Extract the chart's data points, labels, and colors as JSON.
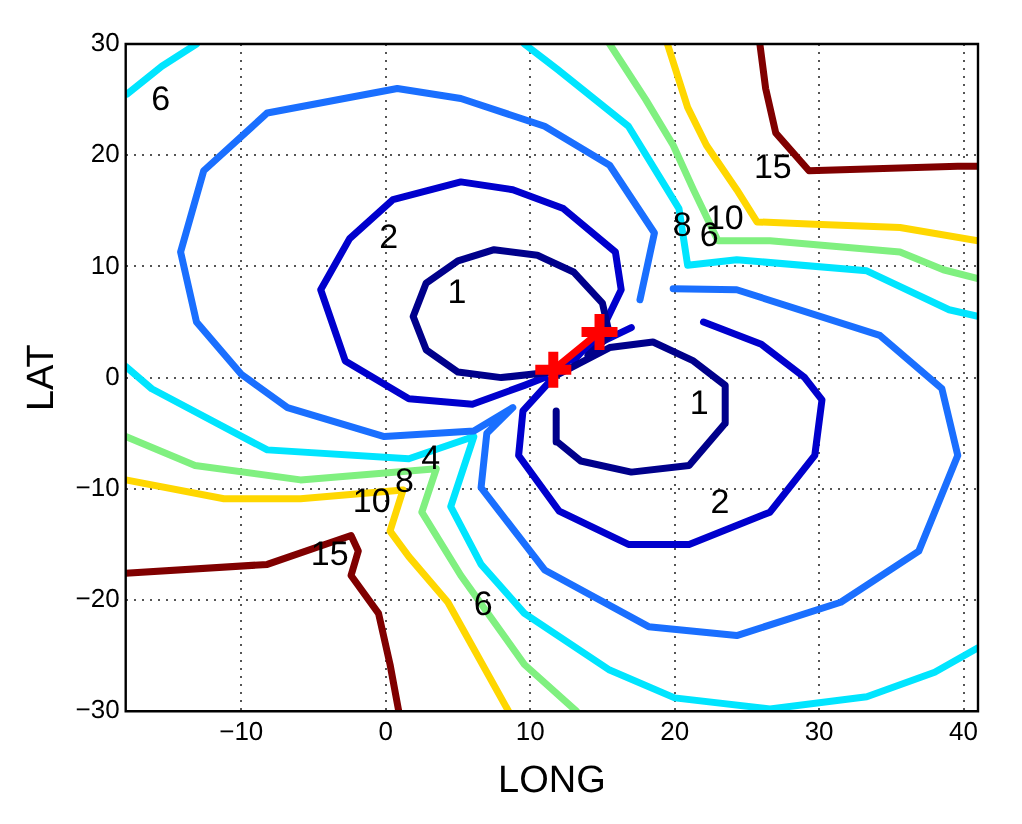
{
  "chart_data": {
    "type": "line",
    "xlabel": "LONG",
    "ylabel": "LAT",
    "xlim": [
      -18,
      41
    ],
    "ylim": [
      -30,
      30
    ],
    "xticks": [
      -10,
      0,
      10,
      20,
      30,
      40
    ],
    "yticks": [
      -30,
      -20,
      -10,
      0,
      10,
      20,
      30
    ],
    "grid": true,
    "legend": false,
    "marker": "none",
    "line_style": "solid",
    "series": [
      {
        "name": "1",
        "color": "#00008b",
        "x": [
          11.5,
          8,
          5,
          2.8,
          1.9,
          2.8,
          5,
          7.5,
          10.5,
          13,
          15,
          15.5,
          14,
          null,
          11.5,
          15.5,
          18.5,
          21.3,
          23.5,
          23.5,
          21,
          17,
          13.5,
          11.9,
          11.8
        ],
        "values": [
          0.5,
          0,
          0.5,
          2.5,
          5.5,
          8.5,
          10.5,
          11.5,
          11,
          9.5,
          6.7,
          3.8,
          2,
          null,
          0,
          2.7,
          3.2,
          1.5,
          -0.7,
          -4.1,
          -7.9,
          -8.5,
          -7.5,
          -5.8,
          -3
        ]
      },
      {
        "name": "2",
        "color": "#0000cd",
        "x": [
          11,
          9.6,
          6,
          1.6,
          -2.8,
          -4.5,
          -2.5,
          0.5,
          5.2,
          8.8,
          12.3,
          15.9,
          16.3,
          15,
          13,
          null,
          22,
          26,
          29,
          30.2,
          29.7,
          26.6,
          21,
          16.8,
          12,
          9.2,
          9.5,
          13,
          17
        ],
        "values": [
          0,
          -0.7,
          -2.4,
          -1.9,
          1.5,
          7.9,
          12.5,
          16,
          17.6,
          16.9,
          15.2,
          11.3,
          7.9,
          4.4,
          1.5,
          null,
          5,
          3,
          0,
          -2,
          -7,
          -12.1,
          -15,
          -15,
          -12,
          -7,
          -3,
          2,
          4.5
        ]
      },
      {
        "name": "4",
        "color": "#1a6fff",
        "x": [
          17.6,
          18.6,
          15.5,
          11,
          5.2,
          0.8,
          -8.2,
          -12.6,
          -14.2,
          -13.1,
          -10,
          -6.8,
          -0.1,
          6.1,
          8.8,
          7,
          6.6,
          11,
          18.2,
          24.3,
          31.5,
          36.9,
          39.6,
          38.5,
          34.2,
          24.3,
          19.9
        ],
        "values": [
          7,
          13,
          19.1,
          22.6,
          25.1,
          26,
          23.8,
          18.6,
          11.3,
          5,
          0.3,
          -2.7,
          -5.3,
          -4.8,
          -2.7,
          -5,
          -9.9,
          -17.3,
          -22.4,
          -23.2,
          -20.2,
          -15.6,
          -7,
          -1,
          3.8,
          7.9,
          8
        ]
      },
      {
        "name": "6",
        "color": "#00e5ff",
        "x": [
          -17.9,
          -15.5,
          -13.1,
          null,
          -18,
          -16.2,
          -8.2,
          1.6,
          6.1,
          4.5,
          6.6,
          9.6,
          15.5,
          20,
          26.6,
          33.3,
          38,
          41,
          null,
          41,
          39,
          33.3,
          24.3,
          20.9,
          20.3,
          16.8,
          11.9,
          9.6
        ],
        "values": [
          25.5,
          28,
          30,
          null,
          1,
          -1,
          -6.5,
          -7.3,
          -5.3,
          -11.6,
          -16.8,
          -21.2,
          -26.3,
          -28.8,
          -29.8,
          -28.7,
          -26.5,
          -24.3,
          null,
          5.5,
          6.1,
          9.6,
          10.6,
          10.1,
          15.2,
          22.6,
          27.7,
          30
        ]
      },
      {
        "name": "8",
        "color": "#80f080",
        "x": [
          -18,
          -13.2,
          -5.9,
          3.5,
          2.5,
          5.2,
          9.6,
          13.2,
          null,
          15.5,
          18,
          19.9,
          21.3,
          23,
          26.6,
          35.6,
          38.6,
          41
        ],
        "values": [
          -5.3,
          -7.9,
          -9.2,
          -8.2,
          -12.1,
          -17.8,
          -25.8,
          -30,
          null,
          30,
          25,
          20.9,
          16.9,
          12.3,
          12.3,
          11.3,
          9.7,
          8.9
        ]
      },
      {
        "name": "10",
        "color": "#ffd700",
        "x": [
          -18,
          -11.2,
          -5.9,
          1.2,
          0.3,
          1.6,
          4.3,
          8.5,
          null,
          19.5,
          20.9,
          22.2,
          24.3,
          25.7,
          29.7,
          35.6,
          41
        ],
        "values": [
          -9.2,
          -10.9,
          -10.9,
          -10.1,
          -13.8,
          -16.1,
          -20.2,
          -30,
          null,
          30,
          24.3,
          20.9,
          16.9,
          14,
          13.8,
          13.5,
          12.3
        ]
      },
      {
        "name": "15",
        "color": "#800000",
        "x": [
          -18,
          -8.2,
          -2.4,
          -1.9,
          -2.4,
          -0.5,
          0.3,
          0.9,
          null,
          25.9,
          26.3,
          27,
          29.3,
          39.6,
          41
        ],
        "values": [
          -17.6,
          -16.8,
          -14.2,
          -15.6,
          -17.8,
          -21.2,
          -25.8,
          -30,
          null,
          30,
          26,
          22,
          18.6,
          19,
          19
        ]
      },
      {
        "color": "#ff0000",
        "marker": "cross",
        "x": [
          11.6,
          14.8
        ],
        "values": [
          0.7,
          4.1
        ]
      }
    ]
  }
}
